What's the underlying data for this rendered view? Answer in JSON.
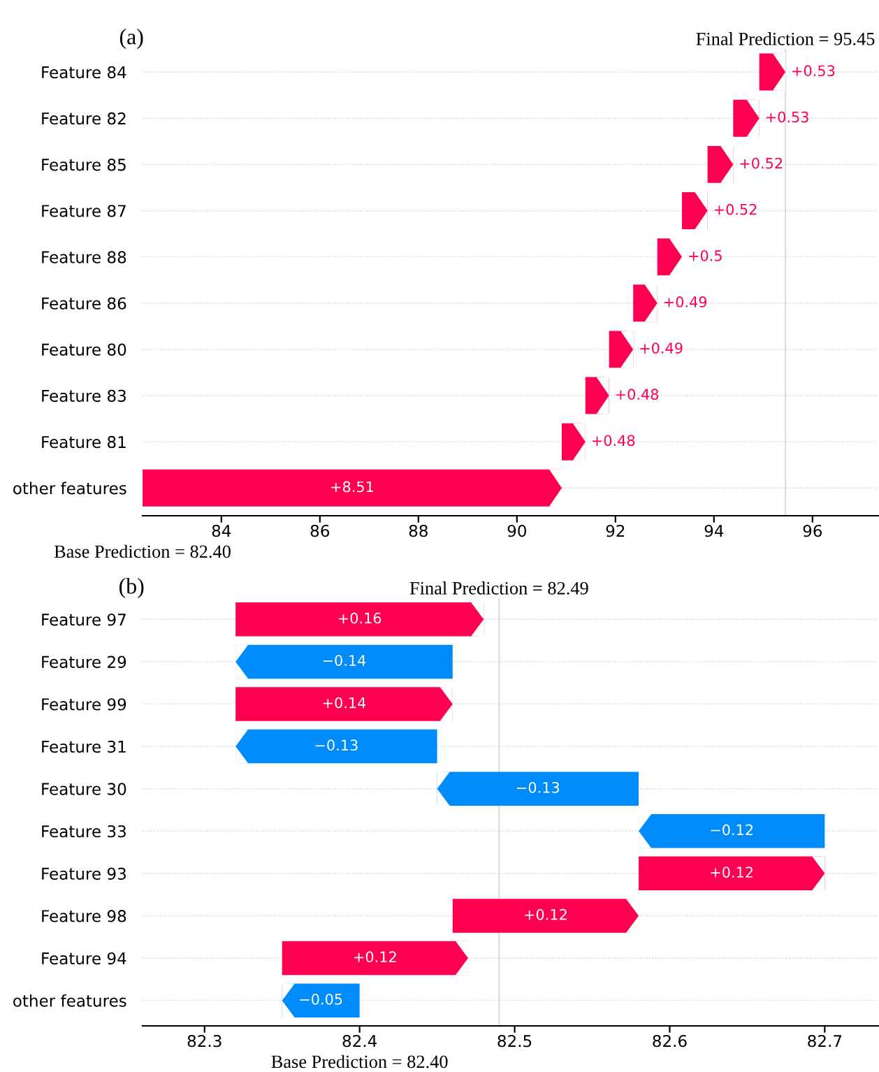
{
  "chart_data": [
    {
      "type": "bar",
      "orientation": "horizontal",
      "title": "(a)",
      "categories": [
        "Feature 84",
        "Feature 82",
        "Feature 85",
        "Feature 87",
        "Feature 88",
        "Feature 86",
        "Feature 80",
        "Feature 83",
        "Feature 81",
        "other features"
      ],
      "values": [
        0.53,
        0.53,
        0.52,
        0.52,
        0.5,
        0.49,
        0.49,
        0.48,
        0.48,
        8.51
      ],
      "base": [
        94.92,
        94.39,
        93.87,
        93.35,
        92.85,
        92.36,
        91.87,
        91.39,
        90.91,
        82.4
      ],
      "colors": [
        "#ff0051",
        "#ff0051",
        "#ff0051",
        "#ff0051",
        "#ff0051",
        "#ff0051",
        "#ff0051",
        "#ff0051",
        "#ff0051",
        "#ff0051"
      ],
      "value_labels": [
        "+0.53",
        "+0.53",
        "+0.52",
        "+0.52",
        "+0.5",
        "+0.49",
        "+0.49",
        "+0.48",
        "+0.48",
        "+8.51"
      ],
      "xlim": [
        82.4,
        97.35
      ],
      "xticks": [
        84,
        86,
        88,
        90,
        92,
        94,
        96
      ],
      "grid": "y",
      "ref_lines": [
        {
          "axis": "x",
          "value": 95.45,
          "label": "Final Prediction = 95.45",
          "color": "#dddddd"
        }
      ],
      "annotations": [
        "Base Prediction = 82.40"
      ]
    },
    {
      "type": "bar",
      "orientation": "horizontal",
      "title": "(b)",
      "categories": [
        "Feature 97",
        "Feature 29",
        "Feature 99",
        "Feature 31",
        "Feature 30",
        "Feature 33",
        "Feature 93",
        "Feature 98",
        "Feature 94",
        "other features"
      ],
      "values": [
        0.16,
        -0.14,
        0.14,
        -0.13,
        -0.13,
        -0.12,
        0.12,
        0.12,
        0.12,
        -0.05
      ],
      "base": [
        82.32,
        82.46,
        82.32,
        82.45,
        82.58,
        82.7,
        82.58,
        82.46,
        82.35,
        82.4
      ],
      "colors": [
        "#ff0051",
        "#008bfb",
        "#ff0051",
        "#008bfb",
        "#008bfb",
        "#008bfb",
        "#ff0051",
        "#ff0051",
        "#ff0051",
        "#008bfb"
      ],
      "value_labels": [
        "+0.16",
        "−0.14",
        "+0.14",
        "−0.13",
        "−0.13",
        "−0.12",
        "+0.12",
        "+0.12",
        "+0.12",
        "−0.05"
      ],
      "xlim": [
        82.26,
        82.735
      ],
      "xticks": [
        82.3,
        82.4,
        82.5,
        82.6,
        82.7
      ],
      "grid": "y",
      "ref_lines": [
        {
          "axis": "x",
          "value": 82.49,
          "label": "Final Prediction = 82.49",
          "color": "#dddddd"
        }
      ],
      "annotations": [
        "Base Prediction = 82.40"
      ]
    }
  ]
}
